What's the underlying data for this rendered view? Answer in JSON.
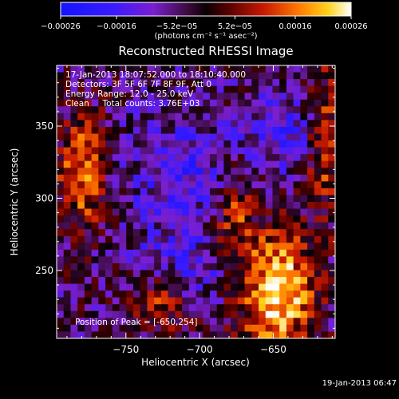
{
  "chart_data": {
    "type": "heatmap",
    "title": "Reconstructed RHESSI Image",
    "xlabel": "Heliocentric X (arcsec)",
    "ylabel": "Heliocentric Y (arcsec)",
    "xlim": [
      -797,
      -608
    ],
    "ylim": [
      203,
      392
    ],
    "x_ticks": [
      -750,
      -700,
      -650
    ],
    "x_tick_labels": [
      "−750",
      "−700",
      "−650"
    ],
    "y_ticks": [
      250,
      300,
      350
    ],
    "y_tick_labels": [
      "250",
      "300",
      "350"
    ],
    "colorbar": {
      "min": -0.00026,
      "max": 0.00026,
      "ticks": [
        -0.00026,
        -0.00016,
        -5.2e-05,
        5.2e-05,
        0.00016,
        0.00026
      ],
      "tick_labels": [
        "−0.00026",
        "−0.00016",
        "−5.2e−05",
        "5.2e−05",
        "0.00016",
        "0.00026"
      ],
      "units": "(photons cm⁻² s⁻¹ asec⁻²)",
      "colormap": "rhessi-blue-purple-red-yellow-white"
    },
    "annotations": [
      "17-Jan-2013 18:07:52.000 to 18:10:40.000",
      "Detectors: 3F 5F 6F 7F 8F 9F, Att 0",
      "Energy Range: 12.0 - 25.0 keV",
      "Clean     Total counts: 3.76E+03"
    ],
    "peak_label": "Position of Peak = [-650,254]",
    "peak_position": [
      -650,
      254
    ]
  },
  "footer": {
    "timestamp": "19-Jan-2013 06:47"
  },
  "colors": {
    "background": "#000000",
    "text": "#ffffff"
  }
}
